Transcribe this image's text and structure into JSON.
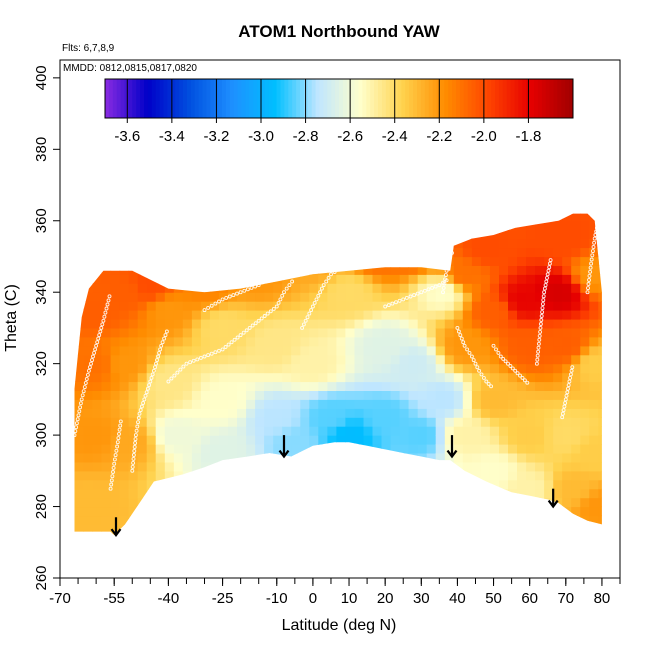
{
  "chart_data": {
    "type": "heatmap",
    "title": "ATOM1 Northbound YAW",
    "notes": {
      "flights": "Flts: 6,7,8,9",
      "dates": "MMDD: 0812,0815,0817,0820"
    },
    "xlabel": "Latitude (deg N)",
    "ylabel": "Theta (C)",
    "xlim": [
      -70,
      85
    ],
    "ylim": [
      260,
      405
    ],
    "xticks": [
      -70,
      -55,
      -40,
      -25,
      -10,
      0,
      10,
      20,
      30,
      40,
      50,
      60,
      70,
      80
    ],
    "xtick_labels": [
      "-70",
      "-55",
      "-40",
      "-25",
      "-10",
      "0",
      "10",
      "20",
      "30",
      "40",
      "50",
      "60",
      "70",
      "80"
    ],
    "yticks": [
      260,
      280,
      300,
      320,
      340,
      360,
      380,
      400
    ],
    "ytick_labels": [
      "260",
      "280",
      "300",
      "320",
      "340",
      "360",
      "380",
      "400"
    ],
    "colorbar": {
      "min": -3.7,
      "max": -1.6,
      "ticks": [
        -3.6,
        -3.4,
        -3.2,
        -3.0,
        -2.8,
        -2.6,
        -2.4,
        -2.2,
        -2.0,
        -1.8
      ],
      "tick_labels": [
        "-3.6",
        "-3.4",
        "-3.2",
        "-3.0",
        "-2.8",
        "-2.6",
        "-2.4",
        "-2.2",
        "-2.0",
        "-1.8"
      ],
      "colors": [
        "#8a2be2",
        "#0000c8",
        "#0050e0",
        "#1e90ff",
        "#00bfff",
        "#bfe6ff",
        "#ffffcc",
        "#ffd24d",
        "#ff8c00",
        "#ff4500",
        "#e60000",
        "#a00000"
      ]
    },
    "boundary": {
      "x": [
        -66,
        -62,
        -58,
        -56,
        -55,
        -52,
        -48,
        -44,
        -40,
        -36,
        -30,
        -25,
        -18,
        -12,
        -6,
        0,
        6,
        10,
        15,
        20,
        25,
        30,
        35,
        38,
        42,
        48,
        55,
        60,
        65,
        68,
        72,
        76,
        80,
        80,
        78,
        76,
        72,
        68,
        62,
        56,
        50,
        44,
        39,
        38,
        30,
        20,
        10,
        0,
        -10,
        -20,
        -30,
        -40,
        -50,
        -58,
        -62,
        -64,
        -66
      ],
      "y": [
        273,
        273,
        273,
        273,
        272,
        275,
        281,
        287,
        288,
        289,
        291,
        293,
        294,
        295,
        294,
        297,
        298,
        298,
        297,
        296,
        295,
        294,
        293,
        293,
        290,
        287,
        284,
        283,
        282,
        281,
        278,
        276,
        275,
        340,
        360,
        362,
        362,
        360,
        359,
        358,
        356,
        355,
        353,
        346,
        347,
        347,
        346,
        345,
        343,
        341,
        340,
        341,
        346,
        346,
        341,
        333,
        313
      ]
    },
    "field_nodes": [
      {
        "x": -60,
        "y": 335,
        "v": -2.05
      },
      {
        "x": -60,
        "y": 320,
        "v": -2.1
      },
      {
        "x": -60,
        "y": 300,
        "v": -2.2
      },
      {
        "x": -62,
        "y": 280,
        "v": -2.3
      },
      {
        "x": -52,
        "y": 340,
        "v": -2.05
      },
      {
        "x": -52,
        "y": 320,
        "v": -2.2
      },
      {
        "x": -50,
        "y": 298,
        "v": -2.25
      },
      {
        "x": -45,
        "y": 342,
        "v": -2.0
      },
      {
        "x": -40,
        "y": 335,
        "v": -2.2
      },
      {
        "x": -40,
        "y": 315,
        "v": -2.45
      },
      {
        "x": -38,
        "y": 300,
        "v": -2.6
      },
      {
        "x": -30,
        "y": 342,
        "v": -2.15
      },
      {
        "x": -25,
        "y": 330,
        "v": -2.4
      },
      {
        "x": -25,
        "y": 310,
        "v": -2.55
      },
      {
        "x": -25,
        "y": 295,
        "v": -2.65
      },
      {
        "x": -15,
        "y": 345,
        "v": -2.2
      },
      {
        "x": -10,
        "y": 325,
        "v": -2.45
      },
      {
        "x": -10,
        "y": 305,
        "v": -2.75
      },
      {
        "x": -5,
        "y": 298,
        "v": -2.8
      },
      {
        "x": 0,
        "y": 348,
        "v": -2.25
      },
      {
        "x": 0,
        "y": 320,
        "v": -2.5
      },
      {
        "x": 5,
        "y": 305,
        "v": -2.85
      },
      {
        "x": 10,
        "y": 300,
        "v": -2.95
      },
      {
        "x": 10,
        "y": 340,
        "v": -2.4
      },
      {
        "x": 18,
        "y": 350,
        "v": -2.1
      },
      {
        "x": 20,
        "y": 325,
        "v": -2.65
      },
      {
        "x": 20,
        "y": 305,
        "v": -2.85
      },
      {
        "x": 28,
        "y": 352,
        "v": -2.05
      },
      {
        "x": 28,
        "y": 320,
        "v": -2.7
      },
      {
        "x": 30,
        "y": 300,
        "v": -2.85
      },
      {
        "x": 36,
        "y": 340,
        "v": -2.55
      },
      {
        "x": 36,
        "y": 310,
        "v": -2.75
      },
      {
        "x": 42,
        "y": 345,
        "v": -2.1
      },
      {
        "x": 42,
        "y": 325,
        "v": -2.2
      },
      {
        "x": 42,
        "y": 300,
        "v": -2.5
      },
      {
        "x": 48,
        "y": 352,
        "v": -2.0
      },
      {
        "x": 50,
        "y": 335,
        "v": -2.05
      },
      {
        "x": 50,
        "y": 310,
        "v": -2.3
      },
      {
        "x": 50,
        "y": 290,
        "v": -2.55
      },
      {
        "x": 58,
        "y": 338,
        "v": -1.8
      },
      {
        "x": 60,
        "y": 325,
        "v": -2.05
      },
      {
        "x": 60,
        "y": 300,
        "v": -2.35
      },
      {
        "x": 60,
        "y": 285,
        "v": -2.5
      },
      {
        "x": 68,
        "y": 340,
        "v": -1.75
      },
      {
        "x": 70,
        "y": 355,
        "v": -2.0
      },
      {
        "x": 70,
        "y": 325,
        "v": -2.05
      },
      {
        "x": 70,
        "y": 300,
        "v": -2.4
      },
      {
        "x": 72,
        "y": 285,
        "v": -2.3
      },
      {
        "x": 78,
        "y": 345,
        "v": -2.2
      },
      {
        "x": 78,
        "y": 320,
        "v": -2.35
      },
      {
        "x": 78,
        "y": 295,
        "v": -2.35
      },
      {
        "x": 79,
        "y": 280,
        "v": -2.2
      }
    ],
    "arrows": [
      {
        "x": -54.5,
        "y_top": 277,
        "y_bottom": 272
      },
      {
        "x": -8,
        "y_top": 300,
        "y_bottom": 294
      },
      {
        "x": 38.5,
        "y_top": 300,
        "y_bottom": 294
      },
      {
        "x": 66.5,
        "y_top": 285,
        "y_bottom": 280
      }
    ],
    "tracks": [
      {
        "points": [
          [
            -66,
            300
          ],
          [
            -64,
            310
          ],
          [
            -62,
            318
          ],
          [
            -60,
            325
          ],
          [
            -58,
            332
          ],
          [
            -56,
            340
          ]
        ]
      },
      {
        "points": [
          [
            -50,
            290
          ],
          [
            -49,
            300
          ],
          [
            -48,
            306
          ],
          [
            -46,
            312
          ],
          [
            -44,
            318
          ],
          [
            -42,
            325
          ],
          [
            -40,
            330
          ]
        ]
      },
      {
        "points": [
          [
            -40,
            315
          ],
          [
            -35,
            320
          ],
          [
            -30,
            322
          ],
          [
            -25,
            324
          ],
          [
            -20,
            328
          ],
          [
            -15,
            332
          ],
          [
            -10,
            336
          ],
          [
            -8,
            340
          ],
          [
            -5,
            344
          ]
        ]
      },
      {
        "points": [
          [
            -30,
            335
          ],
          [
            -25,
            338
          ],
          [
            -20,
            340
          ],
          [
            -15,
            342
          ],
          [
            -12,
            345
          ],
          [
            -10,
            346
          ]
        ]
      },
      {
        "points": [
          [
            -3,
            330
          ],
          [
            0,
            336
          ],
          [
            3,
            342
          ],
          [
            5,
            345
          ],
          [
            8,
            347
          ]
        ]
      },
      {
        "points": [
          [
            20,
            336
          ],
          [
            25,
            338
          ],
          [
            30,
            340
          ],
          [
            35,
            342
          ],
          [
            38,
            344
          ]
        ]
      },
      {
        "points": [
          [
            36,
            340
          ],
          [
            37,
            346
          ],
          [
            38,
            350
          ],
          [
            39,
            352
          ]
        ]
      },
      {
        "points": [
          [
            40,
            330
          ],
          [
            42,
            325
          ],
          [
            44,
            322
          ],
          [
            46,
            318
          ],
          [
            48,
            315
          ],
          [
            50,
            313
          ]
        ]
      },
      {
        "points": [
          [
            50,
            325
          ],
          [
            52,
            322
          ],
          [
            54,
            320
          ],
          [
            56,
            318
          ],
          [
            58,
            316
          ],
          [
            60,
            314
          ]
        ]
      },
      {
        "points": [
          [
            62,
            320
          ],
          [
            63,
            330
          ],
          [
            64,
            340
          ],
          [
            65,
            345
          ],
          [
            66,
            350
          ]
        ]
      },
      {
        "points": [
          [
            69,
            305
          ],
          [
            70,
            310
          ],
          [
            71,
            315
          ],
          [
            72,
            320
          ]
        ]
      },
      {
        "points": [
          [
            76,
            340
          ],
          [
            77,
            348
          ],
          [
            78,
            355
          ],
          [
            79,
            360
          ]
        ]
      },
      {
        "points": [
          [
            -56,
            285
          ],
          [
            -55,
            292
          ],
          [
            -54,
            298
          ],
          [
            -53,
            305
          ]
        ]
      }
    ]
  }
}
